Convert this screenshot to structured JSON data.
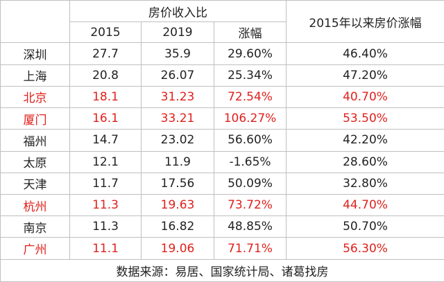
{
  "table": {
    "group_header": "房价收入比",
    "last_header": "2015年以来房价涨幅",
    "sub_headers": [
      "2015",
      "2019",
      "涨幅"
    ],
    "rows": [
      {
        "cells": [
          "深圳",
          "27.7",
          "35.9",
          "29.60%",
          "46.40%"
        ],
        "color": "#222222"
      },
      {
        "cells": [
          "上海",
          "20.8",
          "26.07",
          "25.34%",
          "47.20%"
        ],
        "color": "#222222"
      },
      {
        "cells": [
          "北京",
          "18.1",
          "31.23",
          "72.54%",
          "40.70%"
        ],
        "color": "#e0201b"
      },
      {
        "cells": [
          "厦门",
          "16.1",
          "33.21",
          "106.27%",
          "53.50%"
        ],
        "color": "#e0201b"
      },
      {
        "cells": [
          "福州",
          "14.7",
          "23.02",
          "56.60%",
          "42.20%"
        ],
        "color": "#222222"
      },
      {
        "cells": [
          "太原",
          "12.1",
          "11.9",
          "-1.65%",
          "28.60%"
        ],
        "color": "#222222"
      },
      {
        "cells": [
          "天津",
          "11.7",
          "17.56",
          "50.09%",
          "32.80%"
        ],
        "color": "#222222"
      },
      {
        "cells": [
          "杭州",
          "11.3",
          "19.63",
          "73.72%",
          "44.70%"
        ],
        "color": "#e0201b"
      },
      {
        "cells": [
          "南京",
          "11.3",
          "16.82",
          "48.85%",
          "50.70%"
        ],
        "color": "#222222"
      },
      {
        "cells": [
          "广州",
          "11.1",
          "19.06",
          "71.71%",
          "56.30%"
        ],
        "color": "#e0201b"
      }
    ],
    "footer": "数据来源：易居、国家统计局、诸葛找房"
  }
}
